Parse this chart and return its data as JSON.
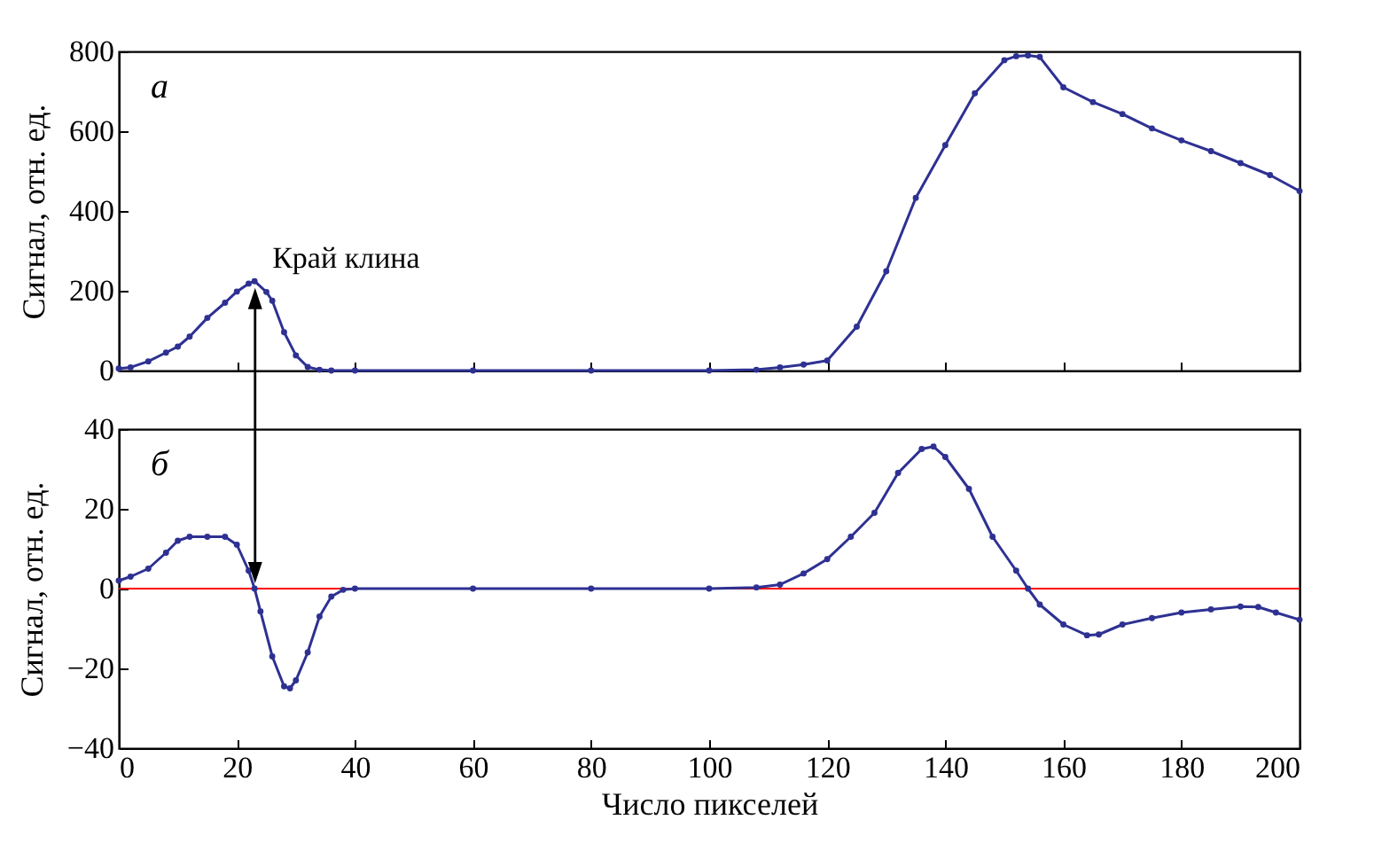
{
  "chart_data": [
    {
      "type": "line",
      "ylabel": "Сигнал, отн. ед.",
      "marker": "circle",
      "tick_labels": "y",
      "xlim": [
        0,
        200
      ],
      "xticks": [
        0,
        20,
        40,
        60,
        80,
        100,
        120,
        140,
        160,
        180,
        200
      ],
      "ylim": [
        0,
        800
      ],
      "yticks": [
        0,
        200,
        400,
        600,
        800
      ],
      "annotations": [
        "а",
        {
          "text": "Край клина",
          "x": 23,
          "y": 222
        }
      ],
      "x": [
        0,
        2,
        5,
        8,
        10,
        12,
        15,
        18,
        20,
        22,
        23,
        25,
        26,
        28,
        30,
        32,
        34,
        36,
        40,
        60,
        80,
        100,
        108,
        112,
        116,
        120,
        125,
        130,
        135,
        140,
        145,
        150,
        152,
        154,
        156,
        160,
        165,
        170,
        175,
        180,
        185,
        190,
        195,
        200
      ],
      "series": [
        {
          "color": "#2e3192",
          "values": [
            5,
            8,
            23,
            45,
            60,
            85,
            132,
            170,
            198,
            218,
            224,
            197,
            175,
            96,
            38,
            9,
            2,
            0,
            0,
            0,
            0,
            0,
            2,
            8,
            15,
            25,
            110,
            249,
            433,
            565,
            695,
            778,
            788,
            790,
            786,
            710,
            673,
            643,
            607,
            577,
            550,
            520,
            490,
            450
          ]
        }
      ]
    },
    {
      "type": "line",
      "xlabel": "Число пикселей",
      "ylabel": "Сигнал, отн. ед.",
      "marker": "circle",
      "xlim": [
        0,
        200
      ],
      "xticks": [
        0,
        20,
        40,
        60,
        80,
        100,
        120,
        140,
        160,
        180,
        200
      ],
      "ylim": [
        -40,
        40
      ],
      "yticks": [
        -40,
        -20,
        0,
        20,
        40
      ],
      "annotations": [
        "б"
      ],
      "ref_lines": [
        {
          "axis": "y",
          "value": 0,
          "color": "#ff0000"
        }
      ],
      "x": [
        0,
        2,
        5,
        8,
        10,
        12,
        15,
        18,
        20,
        22,
        23,
        24,
        26,
        28,
        29,
        30,
        32,
        34,
        36,
        38,
        40,
        60,
        80,
        100,
        108,
        112,
        116,
        120,
        124,
        128,
        132,
        136,
        138,
        140,
        144,
        148,
        152,
        154,
        156,
        160,
        164,
        166,
        170,
        175,
        180,
        185,
        190,
        193,
        196,
        200
      ],
      "series": [
        {
          "color": "#2e3192",
          "values": [
            2,
            3,
            5,
            9,
            12,
            13,
            13,
            13,
            11,
            4.5,
            0,
            -5.7,
            -17,
            -24.5,
            -25,
            -23,
            -16,
            -7,
            -2,
            -0.3,
            0,
            0,
            0,
            0,
            0.3,
            1,
            3.8,
            7.4,
            13,
            19,
            29,
            35,
            35.6,
            33,
            25,
            13,
            4.5,
            0,
            -4,
            -9,
            -11.7,
            -11.5,
            -9,
            -7.4,
            -6,
            -5.2,
            -4.5,
            -4.6,
            -6,
            -7.8
          ]
        }
      ]
    }
  ]
}
